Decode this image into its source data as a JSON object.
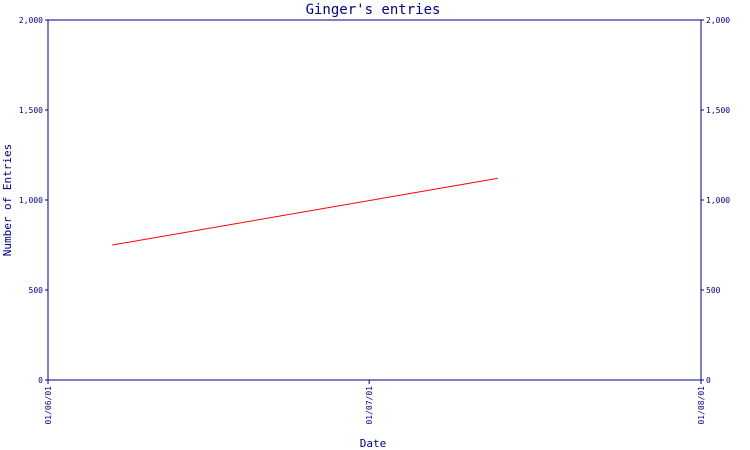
{
  "chart_data": {
    "type": "line",
    "title": "Ginger's entries",
    "xlabel": "Date",
    "ylabel": "Number of Entries",
    "y_ticks": [
      0,
      500,
      1000,
      1500,
      2000
    ],
    "y_tick_labels": [
      "0",
      "500",
      "1,000",
      "1,500",
      "2,000"
    ],
    "ylim": [
      0,
      2000
    ],
    "x_tick_labels": [
      "01/06/01",
      "01/07/01",
      "01/08/01"
    ],
    "x_ticks": [
      "2001-06-01",
      "2001-07-01",
      "2001-08-01"
    ],
    "xlim": [
      "2001-06-01",
      "2001-08-01"
    ],
    "grid": false,
    "series": [
      {
        "x": [
          "2001-06-07",
          "2001-07-13"
        ],
        "values": [
          750,
          1120
        ]
      }
    ],
    "colors": {
      "line": "#ff0000",
      "axis": "#000080",
      "text": "#000080"
    }
  }
}
